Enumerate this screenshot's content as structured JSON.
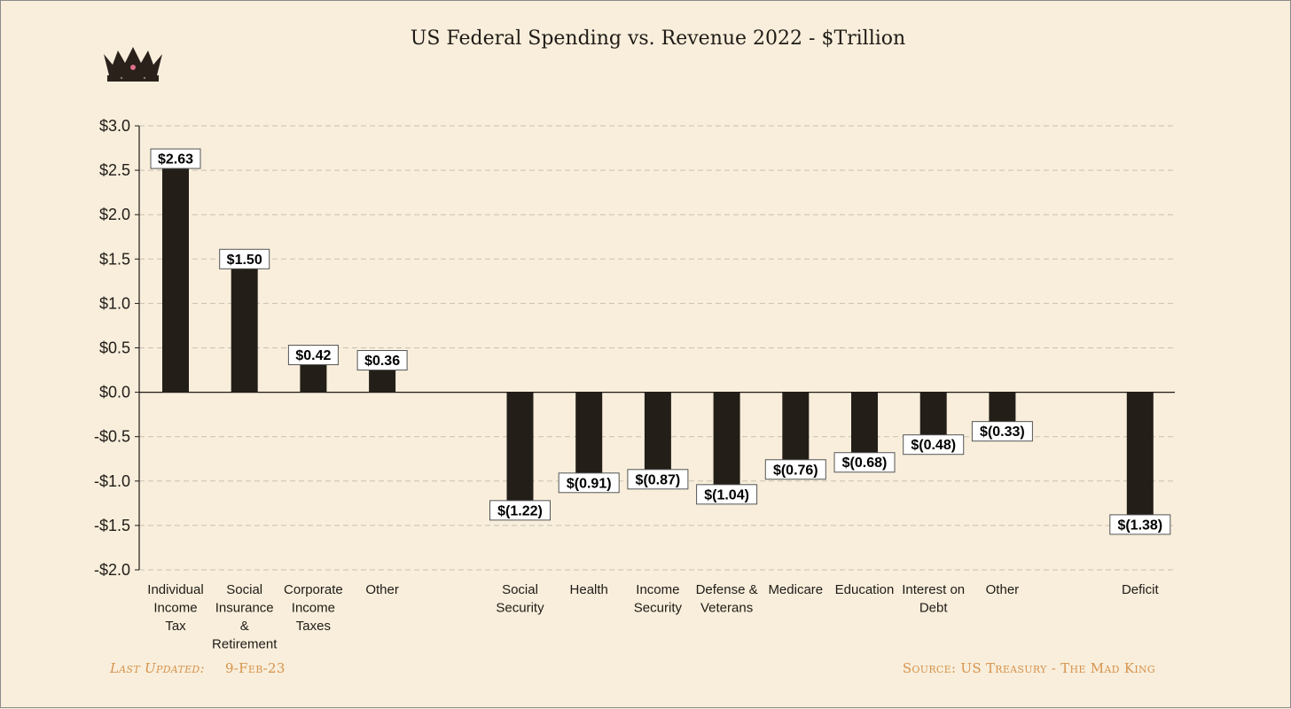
{
  "title": "US Federal Spending vs. Revenue 2022 - $Trillion",
  "footer": {
    "updated_label": "Last Updated:",
    "updated_value": "9-Feb-23",
    "source": "Source: US Treasury  - The Mad King"
  },
  "logo": {
    "icon": "crown-icon",
    "color": "#2a211b",
    "jewel_color": "#e0708a"
  },
  "colors": {
    "bar": "#231e18",
    "grid": "#c8c0b2",
    "axis": "#1f1b17",
    "label_text": "#000000",
    "footer": "#d7934d"
  },
  "chart_data": {
    "type": "bar",
    "title": "US Federal Spending vs. Revenue 2022 - $Trillion",
    "ylim": [
      -2.0,
      3.0
    ],
    "y_ticks": [
      {
        "value": 3.0,
        "label": "$3.0"
      },
      {
        "value": 2.5,
        "label": "$2.5"
      },
      {
        "value": 2.0,
        "label": "$2.0"
      },
      {
        "value": 1.5,
        "label": "$1.5"
      },
      {
        "value": 1.0,
        "label": "$1.0"
      },
      {
        "value": 0.5,
        "label": "$0.5"
      },
      {
        "value": 0.0,
        "label": "$0.0"
      },
      {
        "value": -0.5,
        "label": "-$0.5"
      },
      {
        "value": -1.0,
        "label": "-$1.0"
      },
      {
        "value": -1.5,
        "label": "-$1.5"
      },
      {
        "value": -2.0,
        "label": "-$2.0"
      }
    ],
    "grid": true,
    "categories": [
      {
        "label": [
          "Individual",
          "Income",
          "Tax"
        ],
        "value": 2.63,
        "data_label": "$2.63"
      },
      {
        "label": [
          "Social",
          "Insurance",
          "&",
          "Retirement"
        ],
        "value": 1.5,
        "data_label": "$1.50"
      },
      {
        "label": [
          "Corporate",
          "Income",
          "Taxes"
        ],
        "value": 0.42,
        "data_label": "$0.42"
      },
      {
        "label": [
          "Other"
        ],
        "value": 0.36,
        "data_label": "$0.36"
      },
      {
        "label": [
          ""
        ],
        "value": null,
        "data_label": ""
      },
      {
        "label": [
          "Social",
          "Security"
        ],
        "value": -1.22,
        "data_label": "$(1.22)"
      },
      {
        "label": [
          "Health"
        ],
        "value": -0.91,
        "data_label": "$(0.91)"
      },
      {
        "label": [
          "Income",
          "Security"
        ],
        "value": -0.87,
        "data_label": "$(0.87)"
      },
      {
        "label": [
          "Defense &",
          "Veterans"
        ],
        "value": -1.04,
        "data_label": "$(1.04)"
      },
      {
        "label": [
          "Medicare"
        ],
        "value": -0.76,
        "data_label": "$(0.76)"
      },
      {
        "label": [
          "Education"
        ],
        "value": -0.68,
        "data_label": "$(0.68)"
      },
      {
        "label": [
          "Interest on",
          "Debt"
        ],
        "value": -0.48,
        "data_label": "$(0.48)"
      },
      {
        "label": [
          "Other"
        ],
        "value": -0.33,
        "data_label": "$(0.33)"
      },
      {
        "label": [
          ""
        ],
        "value": null,
        "data_label": ""
      },
      {
        "label": [
          "Deficit"
        ],
        "value": -1.38,
        "data_label": "$(1.38)"
      }
    ]
  }
}
